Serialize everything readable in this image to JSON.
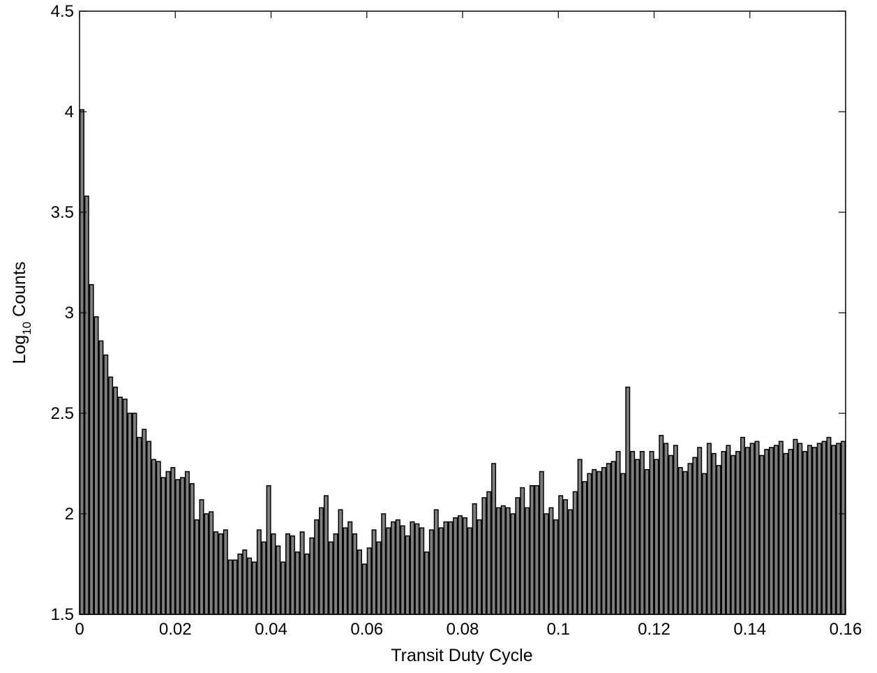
{
  "chart_data": {
    "type": "bar",
    "title": "",
    "xlabel": "Transit Duty Cycle",
    "ylabel": {
      "base": "Log",
      "subscript": "10",
      "rest": " Counts"
    },
    "xlim": [
      0,
      0.16
    ],
    "ylim": [
      1.5,
      4.5
    ],
    "xticks": [
      0,
      0.02,
      0.04,
      0.06,
      0.08,
      0.1,
      0.12,
      0.14,
      0.16
    ],
    "xtick_labels": [
      "0",
      "0.02",
      "0.04",
      "0.06",
      "0.08",
      "0.1",
      "0.12",
      "0.14",
      "0.16"
    ],
    "yticks": [
      1.5,
      2,
      2.5,
      3,
      3.5,
      4,
      4.5
    ],
    "ytick_labels": [
      "1.5",
      "2",
      "2.5",
      "3",
      "3.5",
      "4",
      "4.5"
    ],
    "grid": false,
    "bin_width": 0.001,
    "bar_color": "#7f7f7f",
    "x": [
      0.0005,
      0.0015,
      0.0025,
      0.0035,
      0.0045,
      0.0055,
      0.0065,
      0.0075,
      0.0085,
      0.0095,
      0.0105,
      0.0115,
      0.0125,
      0.0135,
      0.0145,
      0.0155,
      0.0165,
      0.0175,
      0.0185,
      0.0195,
      0.0205,
      0.0215,
      0.0225,
      0.0235,
      0.0245,
      0.0255,
      0.0265,
      0.0275,
      0.0285,
      0.0295,
      0.0305,
      0.0315,
      0.0325,
      0.0335,
      0.0345,
      0.0355,
      0.0365,
      0.0375,
      0.0385,
      0.0395,
      0.0405,
      0.0415,
      0.0425,
      0.0435,
      0.0445,
      0.0455,
      0.0465,
      0.0475,
      0.0485,
      0.0495,
      0.0505,
      0.0515,
      0.0525,
      0.0535,
      0.0545,
      0.0555,
      0.0565,
      0.0575,
      0.0585,
      0.0595,
      0.0605,
      0.0615,
      0.0625,
      0.0635,
      0.0645,
      0.0655,
      0.0665,
      0.0675,
      0.0685,
      0.0695,
      0.0705,
      0.0715,
      0.0725,
      0.0735,
      0.0745,
      0.0755,
      0.0765,
      0.0775,
      0.0785,
      0.0795,
      0.0805,
      0.0815,
      0.0825,
      0.0835,
      0.0845,
      0.0855,
      0.0865,
      0.0875,
      0.0885,
      0.0895,
      0.0905,
      0.0915,
      0.0925,
      0.0935,
      0.0945,
      0.0955,
      0.0965,
      0.0975,
      0.0985,
      0.0995,
      0.1005,
      0.1015,
      0.1025,
      0.1035,
      0.1045,
      0.1055,
      0.1065,
      0.1075,
      0.1085,
      0.1095,
      0.1105,
      0.1115,
      0.1125,
      0.1135,
      0.1145,
      0.1155,
      0.1165,
      0.1175,
      0.1185,
      0.1195,
      0.1205,
      0.1215,
      0.1225,
      0.1235,
      0.1245,
      0.1255,
      0.1265,
      0.1275,
      0.1285,
      0.1295,
      0.1305,
      0.1315,
      0.1325,
      0.1335,
      0.1345,
      0.1355,
      0.1365,
      0.1375,
      0.1385,
      0.1395,
      0.1405,
      0.1415,
      0.1425,
      0.1435,
      0.1445,
      0.1455,
      0.1465,
      0.1475,
      0.1485,
      0.1495,
      0.1505,
      0.1515,
      0.1525,
      0.1535,
      0.1545,
      0.1555,
      0.1565,
      0.1575,
      0.1585,
      0.1595
    ],
    "values": [
      4.01,
      3.58,
      3.14,
      2.98,
      2.86,
      2.79,
      2.68,
      2.63,
      2.58,
      2.57,
      2.5,
      2.5,
      2.38,
      2.42,
      2.36,
      2.27,
      2.26,
      2.18,
      2.21,
      2.23,
      2.17,
      2.18,
      2.21,
      2.15,
      1.97,
      2.07,
      2.0,
      2.01,
      1.91,
      1.9,
      1.92,
      1.77,
      1.77,
      1.8,
      1.82,
      1.78,
      1.76,
      1.92,
      1.86,
      2.14,
      1.9,
      1.84,
      1.76,
      1.9,
      1.89,
      1.81,
      1.91,
      1.8,
      1.88,
      1.97,
      2.03,
      2.09,
      1.86,
      1.9,
      2.02,
      1.93,
      1.96,
      1.9,
      1.82,
      1.75,
      1.83,
      1.92,
      1.86,
      2.0,
      1.93,
      1.96,
      1.97,
      1.94,
      1.89,
      1.96,
      1.95,
      1.93,
      1.81,
      1.92,
      2.02,
      1.93,
      1.96,
      1.96,
      1.98,
      1.99,
      1.98,
      1.93,
      2.05,
      1.97,
      2.08,
      2.11,
      2.25,
      2.03,
      2.04,
      2.03,
      2.0,
      2.08,
      2.13,
      2.03,
      2.14,
      2.14,
      2.21,
      2.0,
      2.03,
      1.97,
      2.09,
      2.07,
      2.02,
      2.11,
      2.27,
      2.16,
      2.2,
      2.22,
      2.21,
      2.23,
      2.25,
      2.26,
      2.31,
      2.2,
      2.63,
      2.31,
      2.27,
      2.31,
      2.22,
      2.31,
      2.27,
      2.39,
      2.35,
      2.29,
      2.34,
      2.23,
      2.21,
      2.25,
      2.28,
      2.33,
      2.2,
      2.35,
      2.3,
      2.24,
      2.31,
      2.34,
      2.29,
      2.31,
      2.38,
      2.33,
      2.35,
      2.36,
      2.29,
      2.32,
      2.33,
      2.34,
      2.36,
      2.3,
      2.32,
      2.37,
      2.35,
      2.31,
      2.34,
      2.33,
      2.35,
      2.36,
      2.38,
      2.34,
      2.35,
      2.36
    ]
  }
}
